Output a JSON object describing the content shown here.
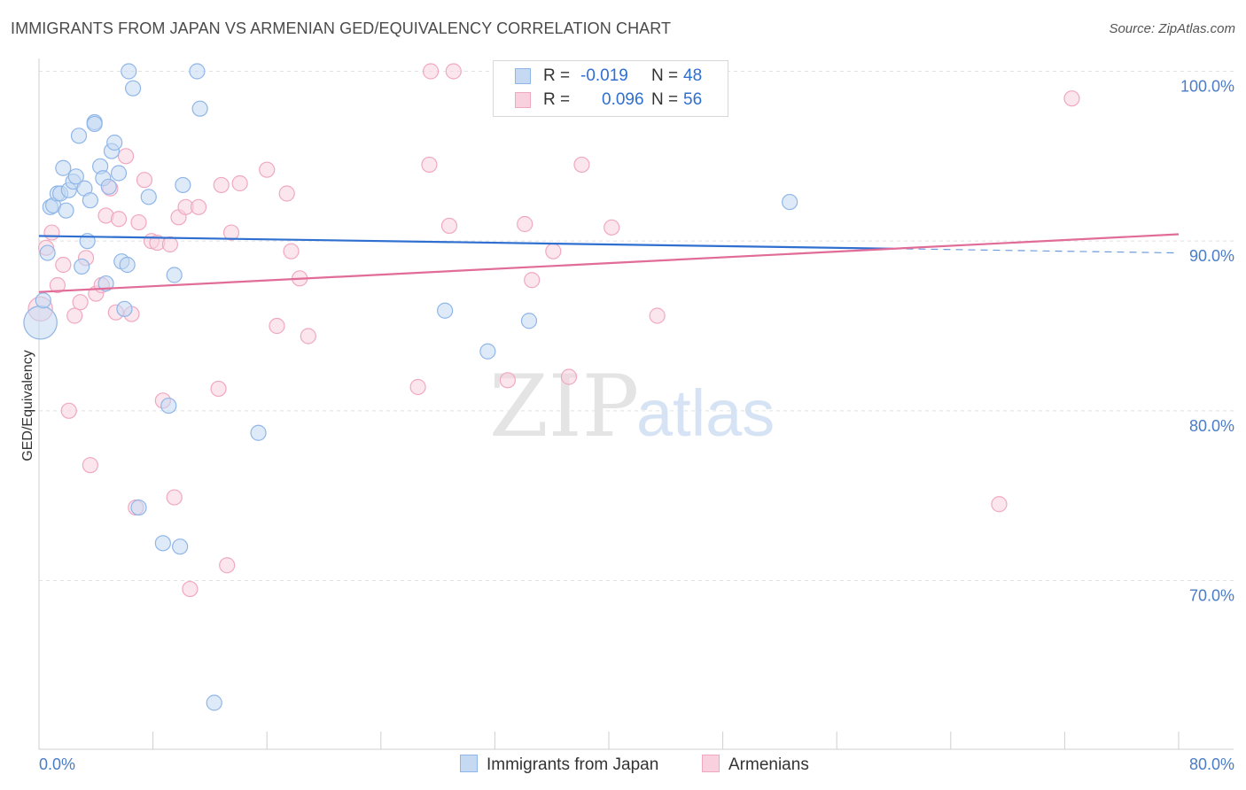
{
  "title": "IMMIGRANTS FROM JAPAN VS ARMENIAN GED/EQUIVALENCY CORRELATION CHART",
  "source": "Source: ZipAtlas.com",
  "watermark": {
    "zip": "ZIP",
    "atlas": "atlas"
  },
  "colors": {
    "blue": "#8fb6e8",
    "blue_line": "#2f6fd0",
    "blue_fill": "#c5d9f3",
    "pink": "#f0a8c0",
    "pink_line": "#e06c97",
    "pink_fill": "#f9d1de",
    "tick_text": "#4a7cc7",
    "grid": "#e2e2e2"
  },
  "legend": {
    "rows": [
      {
        "r_label": "R =",
        "r_value": "-0.019",
        "n_label": "N =",
        "n_value": "48"
      },
      {
        "r_label": "R =",
        "r_value": "0.096",
        "n_label": "N =",
        "n_value": "56"
      }
    ]
  },
  "bottom_legend": {
    "series1": "Immigrants from Japan",
    "series2": "Armenians"
  },
  "chart_data": {
    "type": "scatter",
    "xlabel": "",
    "ylabel": "GED/Equivalency",
    "xlim": [
      0,
      80
    ],
    "ylim": [
      60,
      102
    ],
    "x_tick_labels": [
      {
        "value": 0,
        "label": "0.0%"
      },
      {
        "value": 80,
        "label": "80.0%"
      }
    ],
    "y_tick_labels": [
      {
        "value": 100,
        "label": "100.0%"
      },
      {
        "value": 90,
        "label": "90.0%"
      },
      {
        "value": 80,
        "label": "80.0%"
      },
      {
        "value": 70,
        "label": "70.0%"
      }
    ],
    "grid": true,
    "series": [
      {
        "name": "Immigrants from Japan",
        "trend": {
          "x": [
            0,
            80
          ],
          "y": [
            90.3,
            89.3
          ],
          "solid_until_x": 60
        },
        "points": [
          [
            0.1,
            85.2,
            2.2
          ],
          [
            0.3,
            86.5,
            1
          ],
          [
            0.6,
            89.3,
            1
          ],
          [
            0.8,
            92.0,
            1
          ],
          [
            1.0,
            92.1,
            1
          ],
          [
            1.3,
            92.8,
            1
          ],
          [
            1.5,
            92.8,
            1
          ],
          [
            1.7,
            94.3,
            1
          ],
          [
            1.9,
            91.8,
            1
          ],
          [
            2.1,
            93.0,
            1
          ],
          [
            2.4,
            93.5,
            1
          ],
          [
            2.6,
            93.8,
            1
          ],
          [
            2.8,
            96.2,
            1
          ],
          [
            3.0,
            88.5,
            1
          ],
          [
            3.2,
            93.1,
            1
          ],
          [
            3.4,
            90.0,
            1
          ],
          [
            3.6,
            92.4,
            1
          ],
          [
            3.9,
            97.0,
            1
          ],
          [
            4.3,
            94.4,
            1
          ],
          [
            4.5,
            93.7,
            1
          ],
          [
            4.7,
            87.5,
            1
          ],
          [
            4.9,
            93.2,
            1
          ],
          [
            5.1,
            95.3,
            1
          ],
          [
            5.3,
            95.8,
            1
          ],
          [
            5.6,
            94.0,
            1
          ],
          [
            5.8,
            88.8,
            1
          ],
          [
            6.0,
            86.0,
            1
          ],
          [
            6.2,
            88.6,
            1
          ],
          [
            6.3,
            100.0,
            1
          ],
          [
            6.6,
            99.0,
            1
          ],
          [
            7.0,
            74.3,
            1
          ],
          [
            7.7,
            92.6,
            1
          ],
          [
            8.7,
            72.2,
            1
          ],
          [
            9.1,
            80.3,
            1
          ],
          [
            9.5,
            88.0,
            1
          ],
          [
            9.9,
            72.0,
            1
          ],
          [
            10.1,
            93.3,
            1
          ],
          [
            11.1,
            100.0,
            1
          ],
          [
            11.3,
            97.8,
            1
          ],
          [
            12.3,
            62.8,
            1
          ],
          [
            15.4,
            78.7,
            1
          ],
          [
            28.5,
            85.9,
            1
          ],
          [
            31.5,
            83.5,
            1
          ],
          [
            34.4,
            85.3,
            1
          ],
          [
            37.9,
            100.0,
            1
          ],
          [
            43.2,
            100.0,
            1
          ],
          [
            52.7,
            92.3,
            1
          ],
          [
            3.9,
            96.9,
            1
          ]
        ]
      },
      {
        "name": "Armenians",
        "trend": {
          "x": [
            0,
            80
          ],
          "y": [
            87.0,
            90.4
          ]
        },
        "points": [
          [
            0.1,
            86.0,
            1.6
          ],
          [
            0.5,
            89.6,
            1
          ],
          [
            0.9,
            90.5,
            1
          ],
          [
            1.3,
            87.4,
            1
          ],
          [
            1.7,
            88.6,
            1
          ],
          [
            2.1,
            80.0,
            1
          ],
          [
            2.5,
            85.6,
            1
          ],
          [
            2.9,
            86.4,
            1
          ],
          [
            3.3,
            89.0,
            1
          ],
          [
            3.6,
            76.8,
            1
          ],
          [
            4.0,
            86.9,
            1
          ],
          [
            4.4,
            87.4,
            1
          ],
          [
            4.7,
            91.5,
            1
          ],
          [
            5.0,
            93.1,
            1
          ],
          [
            5.4,
            85.8,
            1
          ],
          [
            5.6,
            91.3,
            1
          ],
          [
            6.1,
            95.0,
            1
          ],
          [
            6.5,
            85.7,
            1
          ],
          [
            6.8,
            74.3,
            1
          ],
          [
            7.0,
            91.1,
            1
          ],
          [
            7.4,
            93.6,
            1
          ],
          [
            7.9,
            90.0,
            1
          ],
          [
            8.3,
            89.9,
            1
          ],
          [
            8.7,
            80.6,
            1
          ],
          [
            9.2,
            89.8,
            1
          ],
          [
            9.5,
            74.9,
            1
          ],
          [
            9.8,
            91.4,
            1
          ],
          [
            10.3,
            92.0,
            1
          ],
          [
            10.6,
            69.5,
            1
          ],
          [
            11.2,
            92.0,
            1
          ],
          [
            12.6,
            81.3,
            1
          ],
          [
            12.8,
            93.3,
            1
          ],
          [
            13.2,
            70.9,
            1
          ],
          [
            13.5,
            90.5,
            1
          ],
          [
            14.1,
            93.4,
            1
          ],
          [
            16.0,
            94.2,
            1
          ],
          [
            16.7,
            85.0,
            1
          ],
          [
            17.4,
            92.8,
            1
          ],
          [
            17.7,
            89.4,
            1
          ],
          [
            18.3,
            87.8,
            1
          ],
          [
            18.9,
            84.4,
            1
          ],
          [
            26.6,
            81.4,
            1
          ],
          [
            27.4,
            94.5,
            1
          ],
          [
            27.5,
            100.0,
            1
          ],
          [
            28.8,
            90.9,
            1
          ],
          [
            29.1,
            100.0,
            1
          ],
          [
            32.9,
            81.8,
            1
          ],
          [
            34.1,
            91.0,
            1
          ],
          [
            34.6,
            87.7,
            1
          ],
          [
            36.1,
            89.4,
            1
          ],
          [
            37.2,
            82.0,
            1
          ],
          [
            38.1,
            94.5,
            1
          ],
          [
            40.2,
            90.8,
            1
          ],
          [
            43.4,
            85.6,
            1
          ],
          [
            67.4,
            74.5,
            1
          ],
          [
            72.5,
            98.4,
            1
          ]
        ]
      }
    ]
  }
}
